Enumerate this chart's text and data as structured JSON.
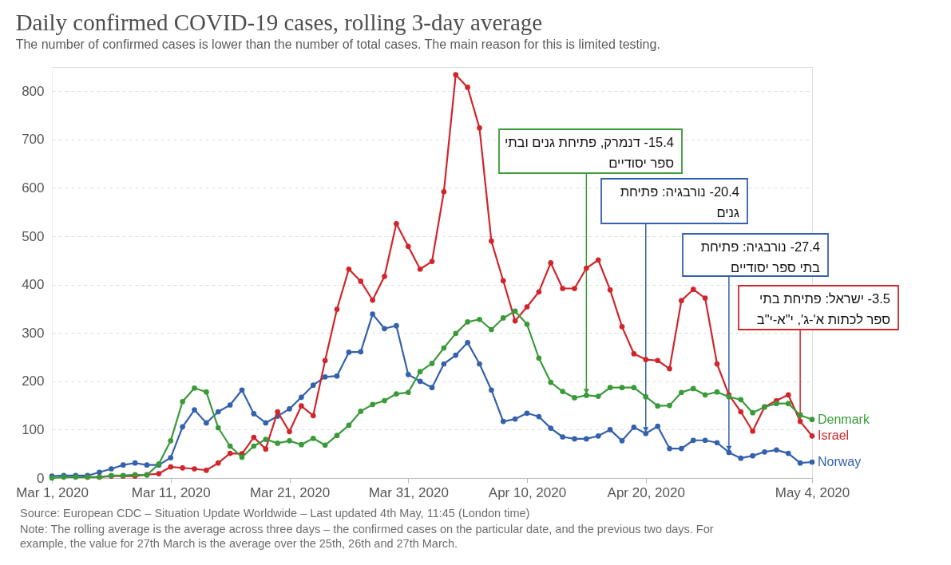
{
  "chart_data": {
    "type": "line",
    "title": "Daily confirmed COVID-19 cases, rolling 3-day average",
    "subtitle": "The number of confirmed cases is lower than the number of total cases. The main reason for this is limited testing.",
    "x": [
      "2020-03-01",
      "2020-03-02",
      "2020-03-03",
      "2020-03-04",
      "2020-03-05",
      "2020-03-06",
      "2020-03-07",
      "2020-03-08",
      "2020-03-09",
      "2020-03-10",
      "2020-03-11",
      "2020-03-12",
      "2020-03-13",
      "2020-03-14",
      "2020-03-15",
      "2020-03-16",
      "2020-03-17",
      "2020-03-18",
      "2020-03-19",
      "2020-03-20",
      "2020-03-21",
      "2020-03-22",
      "2020-03-23",
      "2020-03-24",
      "2020-03-25",
      "2020-03-26",
      "2020-03-27",
      "2020-03-28",
      "2020-03-29",
      "2020-03-30",
      "2020-03-31",
      "2020-04-01",
      "2020-04-02",
      "2020-04-03",
      "2020-04-04",
      "2020-04-05",
      "2020-04-06",
      "2020-04-07",
      "2020-04-08",
      "2020-04-09",
      "2020-04-10",
      "2020-04-11",
      "2020-04-12",
      "2020-04-13",
      "2020-04-14",
      "2020-04-15",
      "2020-04-16",
      "2020-04-17",
      "2020-04-18",
      "2020-04-19",
      "2020-04-20",
      "2020-04-21",
      "2020-04-22",
      "2020-04-23",
      "2020-04-24",
      "2020-04-25",
      "2020-04-26",
      "2020-04-27",
      "2020-04-28",
      "2020-04-29",
      "2020-04-30",
      "2020-05-01",
      "2020-05-02",
      "2020-05-03",
      "2020-05-04"
    ],
    "series": [
      {
        "name": "Denmark",
        "color": "#3a9a3a",
        "values": [
          0,
          2,
          2,
          2,
          2,
          5,
          5,
          7,
          6,
          29,
          77,
          158,
          186,
          178,
          104,
          66,
          43,
          66,
          80,
          72,
          77,
          69,
          82,
          68,
          88,
          109,
          138,
          152,
          160,
          174,
          177,
          220,
          237,
          269,
          299,
          323,
          328,
          307,
          331,
          345,
          318,
          248,
          198,
          179,
          166,
          171,
          169,
          187,
          187,
          187,
          168,
          149,
          150,
          177,
          185,
          172,
          178,
          168,
          162,
          135,
          147,
          154,
          154,
          130,
          121
        ]
      },
      {
        "name": "Israel",
        "color": "#d0262b",
        "values": [
          null,
          null,
          null,
          2,
          2,
          4,
          4,
          4,
          7,
          9,
          23,
          21,
          19,
          16,
          31,
          51,
          50,
          84,
          60,
          137,
          96,
          149,
          129,
          243,
          349,
          432,
          407,
          368,
          417,
          526,
          479,
          432,
          448,
          592,
          834,
          808,
          724,
          490,
          408,
          325,
          354,
          385,
          445,
          392,
          392,
          434,
          451,
          389,
          313,
          257,
          245,
          243,
          226,
          367,
          390,
          372,
          236,
          172,
          137,
          97,
          147,
          160,
          172,
          117,
          87
        ]
      },
      {
        "name": "Norway",
        "color": "#3461ad",
        "values": [
          4,
          5,
          5,
          5,
          12,
          19,
          27,
          31,
          27,
          27,
          42,
          106,
          141,
          114,
          137,
          151,
          182,
          133,
          114,
          128,
          143,
          167,
          192,
          209,
          211,
          260,
          261,
          339,
          309,
          315,
          214,
          200,
          187,
          236,
          254,
          280,
          236,
          182,
          117,
          122,
          134,
          127,
          103,
          85,
          81,
          81,
          87,
          100,
          77,
          105,
          92,
          107,
          61,
          61,
          78,
          78,
          73,
          53,
          41,
          46,
          54,
          58,
          51,
          31,
          33
        ]
      }
    ],
    "xlim": [
      "2020-03-01",
      "2020-05-04"
    ],
    "xticks": [
      {
        "value": "2020-03-01",
        "label": "Mar 1, 2020"
      },
      {
        "value": "2020-03-11",
        "label": "Mar 11, 2020"
      },
      {
        "value": "2020-03-21",
        "label": "Mar 21, 2020"
      },
      {
        "value": "2020-03-31",
        "label": "Mar 31, 2020"
      },
      {
        "value": "2020-04-10",
        "label": "Apr 10, 2020"
      },
      {
        "value": "2020-04-20",
        "label": "Apr 20, 2020"
      },
      {
        "value": "2020-05-04",
        "label": "May 4, 2020"
      }
    ],
    "ylim": [
      0,
      850
    ],
    "yticks": [
      0,
      100,
      200,
      300,
      400,
      500,
      600,
      700,
      800
    ],
    "grid": "y",
    "marker": "circle",
    "line_style": "solid",
    "annotations": [
      {
        "text": "15.4- דנמרק, פתיחת גנים ובתי\nספר יסודיים",
        "x": "2020-04-15",
        "y": 171
      },
      {
        "text": "20.4- נורבגיה: פתיחת\nגנים",
        "x": "2020-04-20",
        "y": 92
      },
      {
        "text": "27.4- נורבגיה: פתיחת\nבתי ספר יסודיים",
        "x": "2020-04-27",
        "y": 53
      },
      {
        "text": "3.5- ישראל: פתיחת בתי\nספר לכתות א'-ג', י\"א-י\"ב",
        "x": "2020-05-03",
        "y": 122
      },
      "Source: European CDC – Situation Update Worldwide – Last updated 4th May, 11:45 (London time)",
      "Note: The rolling average is the average across three days – the confirmed cases on the particular date, and the previous two days. For\nexample, the value for 27th March is the average over the 25th, 26th and 27th March."
    ]
  }
}
